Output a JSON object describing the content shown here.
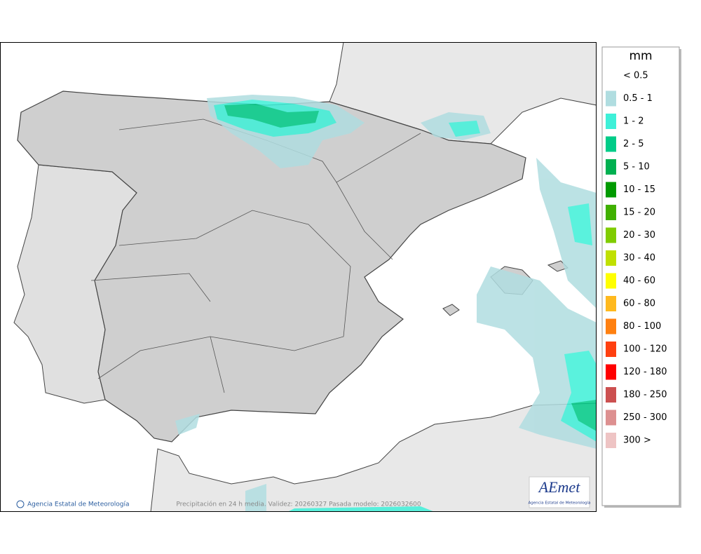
{
  "map": {
    "credit": "Agencia Estatal de Meteorología",
    "caption": "Precipitación en 24 h media. Validez: 20260327 Pasada modelo: 2026032600",
    "logo": {
      "name": "AEmet",
      "subtitle": "Agencia Estatal de Meteorología"
    }
  },
  "legend": {
    "title": "mm",
    "items": [
      {
        "label": "< 0.5"
      },
      {
        "label": "0.5 - 1",
        "color": "#b0dde0"
      },
      {
        "label": "1 - 2",
        "color": "#3ef0d8"
      },
      {
        "label": "2 - 5",
        "color": "#00cc88"
      },
      {
        "label": "5 - 10",
        "color": "#00b050"
      },
      {
        "label": "10 - 15",
        "color": "#009a00"
      },
      {
        "label": "15 - 20",
        "color": "#40b000"
      },
      {
        "label": "20 - 30",
        "color": "#80cc00"
      },
      {
        "label": "30 - 40",
        "color": "#c0e000"
      },
      {
        "label": "40 - 60",
        "color": "#ffff00"
      },
      {
        "label": "60 - 80",
        "color": "#ffb91e"
      },
      {
        "label": "80 - 100",
        "color": "#ff8010"
      },
      {
        "label": "100 - 120",
        "color": "#ff4010"
      },
      {
        "label": "120 - 180",
        "color": "#ff0000"
      },
      {
        "label": "180 - 250",
        "color": "#cc5050"
      },
      {
        "label": "250 - 300",
        "color": "#dd9090"
      },
      {
        "label": "300 >",
        "color": "#eec4c4"
      }
    ]
  }
}
